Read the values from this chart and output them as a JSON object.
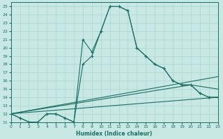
{
  "xlabel": "Humidex (Indice chaleur)",
  "xlim": [
    0,
    23
  ],
  "ylim": [
    11,
    25.5
  ],
  "yticks": [
    11,
    12,
    13,
    14,
    15,
    16,
    17,
    18,
    19,
    20,
    21,
    22,
    23,
    24,
    25
  ],
  "xticks": [
    0,
    1,
    2,
    3,
    4,
    5,
    6,
    7,
    8,
    9,
    10,
    11,
    12,
    13,
    14,
    15,
    16,
    17,
    18,
    19,
    20,
    21,
    22,
    23
  ],
  "bg_color": "#c8e8e4",
  "line_color": "#1a6e64",
  "grid_color": "#b0d8d4",
  "line1": {
    "x": [
      0,
      1,
      2,
      3,
      4,
      5,
      6,
      7,
      8,
      9,
      10,
      11,
      12,
      13,
      14,
      15,
      16,
      17,
      18,
      19,
      20,
      21,
      22,
      23
    ],
    "y": [
      12,
      11.5,
      11,
      11,
      12,
      12,
      11.5,
      11,
      18,
      19,
      22,
      25,
      25,
      24.5,
      20,
      19,
      18,
      17.5,
      16,
      15.5,
      15.5,
      14.5,
      14,
      14
    ]
  },
  "line2": {
    "x": [
      0,
      1,
      2,
      3,
      4,
      5,
      6,
      7,
      8,
      9,
      10,
      11,
      12,
      13,
      14,
      15,
      16,
      17,
      18,
      19,
      20,
      21,
      22,
      23
    ],
    "y": [
      12,
      11.5,
      11,
      11,
      12,
      12,
      11.5,
      11,
      21,
      19.5,
      22,
      25,
      25,
      24.5,
      20,
      19,
      18,
      17.5,
      16,
      15.5,
      15.5,
      14.5,
      14,
      14
    ]
  },
  "smooth_lines": [
    {
      "x": [
        0,
        23
      ],
      "y": [
        12,
        16.5
      ]
    },
    {
      "x": [
        0,
        20,
        23
      ],
      "y": [
        12,
        15.5,
        15.0
      ]
    },
    {
      "x": [
        0,
        23
      ],
      "y": [
        12,
        14.0
      ]
    }
  ]
}
